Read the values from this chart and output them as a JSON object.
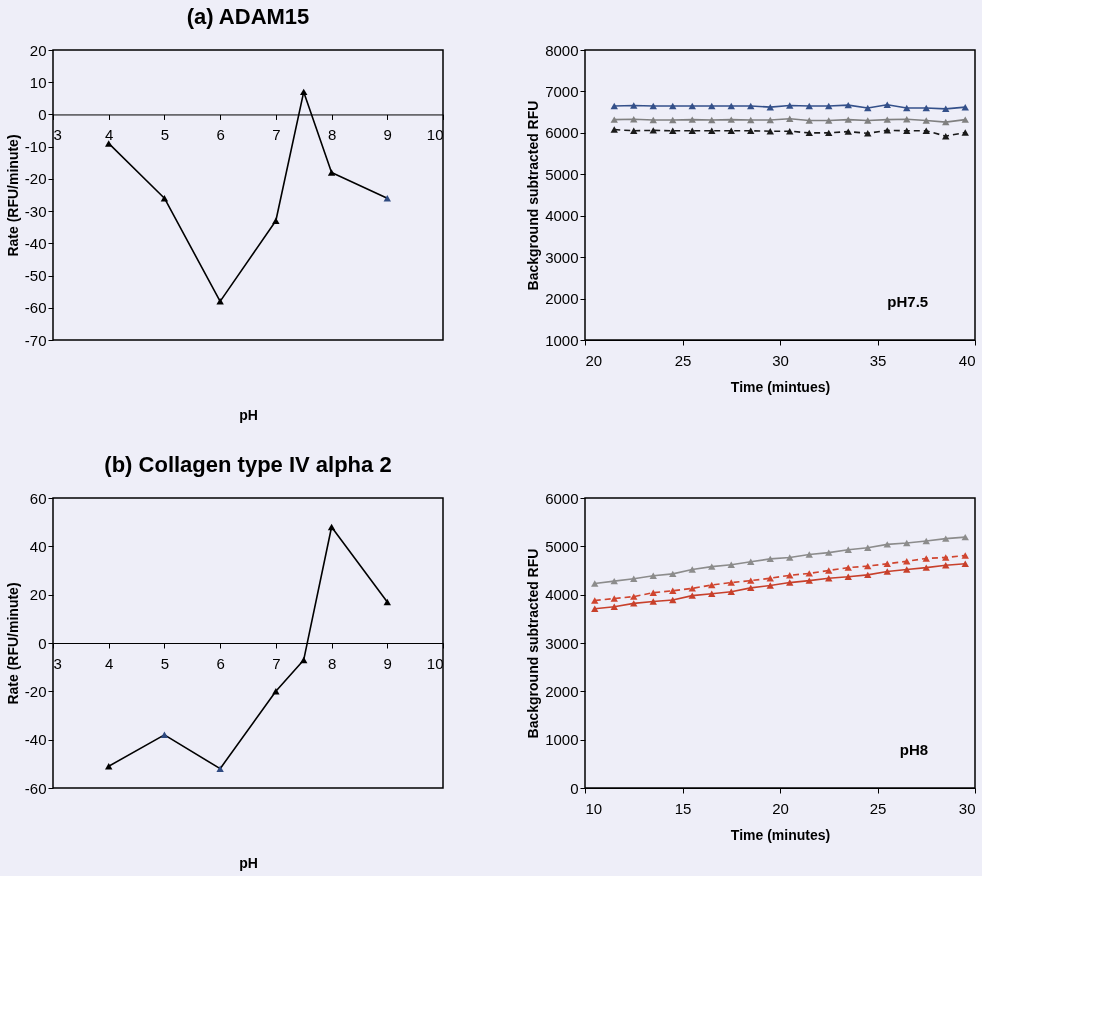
{
  "chart_data": [
    {
      "type": "line",
      "title": "(a) ADAM15",
      "xlabel": "pH",
      "ylabel": "Rate (RFU/minute)",
      "xlim": [
        3,
        10
      ],
      "xticks": [
        3,
        4,
        5,
        6,
        7,
        8,
        9,
        10
      ],
      "ylim": [
        -70,
        20
      ],
      "yticks": [
        -70,
        -60,
        -50,
        -40,
        -30,
        -20,
        -10,
        0,
        10,
        20
      ],
      "grid": false,
      "marker": "triangle",
      "x": [
        4,
        5,
        6,
        7,
        7.5,
        8,
        9
      ],
      "series": [
        {
          "color": "#000000",
          "line_style": "solid",
          "values": [
            -9,
            -26,
            -58,
            -33,
            7,
            -18,
            -26
          ],
          "colors": [
            "#000000",
            "#000000",
            "#000000",
            "#000000",
            "#000000",
            "#000000",
            "#2f4a80"
          ]
        }
      ]
    },
    {
      "type": "line",
      "xlabel": "Time (mintues)",
      "ylabel": "Background subtracted RFU",
      "xlim": [
        20,
        40
      ],
      "xticks": [
        20,
        25,
        30,
        35,
        40
      ],
      "ylim": [
        1000,
        8000
      ],
      "yticks": [
        1000,
        2000,
        3000,
        4000,
        5000,
        6000,
        7000,
        8000
      ],
      "grid": false,
      "marker": "triangle",
      "annotations": [
        "pH7.5"
      ],
      "x": [
        21.5,
        22.5,
        23.5,
        24.5,
        25.5,
        26.5,
        27.5,
        28.5,
        29.5,
        30.5,
        31.5,
        32.5,
        33.5,
        34.5,
        35.5,
        36.5,
        37.5,
        38.5,
        39.5
      ],
      "series": [
        {
          "color": "#34508a",
          "line_style": "solid",
          "values": [
            6650,
            6660,
            6650,
            6650,
            6650,
            6650,
            6650,
            6650,
            6620,
            6660,
            6650,
            6650,
            6670,
            6600,
            6680,
            6600,
            6600,
            6580,
            6620
          ]
        },
        {
          "color": "#808080",
          "line_style": "solid",
          "values": [
            6320,
            6330,
            6310,
            6310,
            6320,
            6310,
            6320,
            6310,
            6310,
            6340,
            6300,
            6300,
            6320,
            6300,
            6320,
            6330,
            6300,
            6260,
            6320
          ]
        },
        {
          "color": "#1a1a1a",
          "line_style": "dashed",
          "values": [
            6080,
            6050,
            6060,
            6050,
            6050,
            6050,
            6050,
            6050,
            6040,
            6040,
            6000,
            6000,
            6030,
            5990,
            6060,
            6050,
            6050,
            5920,
            6010
          ]
        }
      ]
    },
    {
      "type": "line",
      "title": "(b) Collagen type IV alpha 2",
      "xlabel": "pH",
      "ylabel": "Rate (RFU/minute)",
      "xlim": [
        3,
        10
      ],
      "xticks": [
        3,
        4,
        5,
        6,
        7,
        8,
        9,
        10
      ],
      "ylim": [
        -60,
        60
      ],
      "yticks": [
        -60,
        -40,
        -20,
        0,
        20,
        40,
        60
      ],
      "grid": false,
      "marker": "triangle",
      "x": [
        4,
        5,
        6,
        7,
        7.5,
        8,
        9
      ],
      "series": [
        {
          "color": "#000000",
          "line_style": "solid",
          "values": [
            -51,
            -38,
            -52,
            -20,
            -7,
            48,
            17
          ],
          "colors": [
            "#000000",
            "#2f4a80",
            "#2f4a80",
            "#000000",
            "#000000",
            "#000000",
            "#000000"
          ]
        }
      ]
    },
    {
      "type": "line",
      "xlabel": "Time (minutes)",
      "ylabel": "Background subtracted RFU",
      "xlim": [
        10,
        30
      ],
      "xticks": [
        10,
        15,
        20,
        25,
        30
      ],
      "ylim": [
        0,
        6000
      ],
      "yticks": [
        0,
        1000,
        2000,
        3000,
        4000,
        5000,
        6000
      ],
      "grid": false,
      "marker": "triangle",
      "annotations": [
        "pH8"
      ],
      "x": [
        10.5,
        11.5,
        12.5,
        13.5,
        14.5,
        15.5,
        16.5,
        17.5,
        18.5,
        19.5,
        20.5,
        21.5,
        22.5,
        23.5,
        24.5,
        25.5,
        26.5,
        27.5,
        28.5,
        29.5
      ],
      "series": [
        {
          "color": "#8c8c8c",
          "line_style": "solid",
          "values": [
            4230,
            4280,
            4330,
            4390,
            4430,
            4520,
            4580,
            4620,
            4680,
            4740,
            4770,
            4830,
            4870,
            4930,
            4970,
            5040,
            5070,
            5110,
            5160,
            5190
          ]
        },
        {
          "color": "#d0452f",
          "line_style": "dashed",
          "values": [
            3880,
            3920,
            3960,
            4040,
            4080,
            4130,
            4200,
            4250,
            4290,
            4340,
            4400,
            4440,
            4500,
            4560,
            4590,
            4640,
            4690,
            4750,
            4770,
            4810
          ]
        },
        {
          "color": "#c8402b",
          "line_style": "solid",
          "values": [
            3710,
            3750,
            3820,
            3860,
            3890,
            3980,
            4020,
            4060,
            4140,
            4190,
            4250,
            4290,
            4340,
            4370,
            4410,
            4480,
            4520,
            4560,
            4610,
            4640
          ]
        }
      ]
    }
  ]
}
